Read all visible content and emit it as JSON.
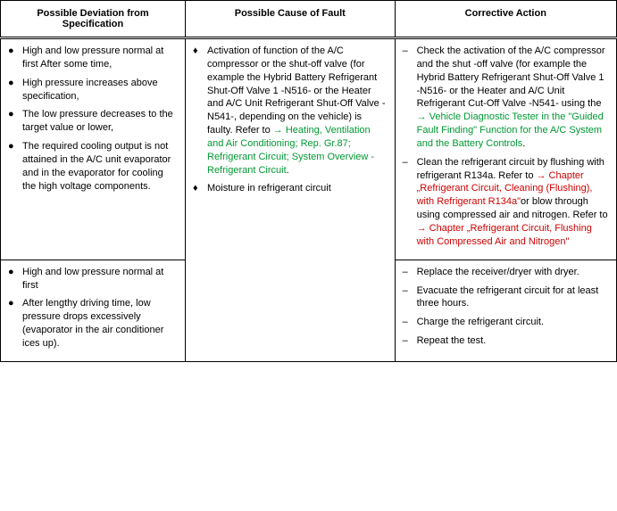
{
  "columns": {
    "w1": "30%",
    "w2": "34%",
    "w3": "36%"
  },
  "headers": {
    "c1": "Possible Deviation from Specification",
    "c2": "Possible Cause of Fault",
    "c3": "Corrective Action"
  },
  "bullets": {
    "dot": "♦",
    "disc": "●",
    "dash": "–"
  },
  "row1": {
    "dev": [
      "High and low pressure normal at first After some time,",
      "High pressure increases above specification,",
      "The low pressure decreases to the target value or lower,",
      "The required cooling output is not attained in the A/C unit evaporator and in the evaporator for cooling the high voltage components."
    ],
    "cause": {
      "item1_before": "Activation of function of the A/C compressor or the shut-off valve (for example the Hybrid Battery Refrigerant Shut-Off Valve 1 -N516- or the Heater and A/C Unit Refrigerant Shut-Off Valve -N541-, depending on the vehicle) is faulty. Refer to ",
      "item1_link": "→ Heating, Ventilation and Air Conditioning; Rep. Gr.87; Refrigerant Circuit; System Overview - Refrigerant Circuit",
      "item1_after": ".",
      "item2": "Moisture in refrigerant circuit"
    },
    "action": {
      "a1_before": "Check the activation of the A/C compressor and the shut -off valve (for example the Hybrid Battery Refrigerant Shut-Off Valve 1 -N516- or the Heater and A/C Unit Refrigerant Cut-Off Valve -N541- using the ",
      "a1_link": "→ Vehicle Diagnostic Tester in the \"Guided Fault Finding\" Function for the A/C System and the Battery Controls",
      "a1_after": ".",
      "a2_before": "Clean the refrigerant circuit by flushing with refrigerant R134a. Refer to ",
      "a2_link1": "→ Chapter „Refrigerant Circuit, Cleaning (Flushing), with Refrigerant R134a\"",
      "a2_mid": "or blow through using compressed air and nitrogen. Refer to ",
      "a2_link2": "→ Chapter „Refrigerant Circuit, Flushing with Compressed Air and Nitrogen\""
    }
  },
  "row2": {
    "dev": [
      "High and low pressure normal at first",
      "After lengthy driving time, low pressure drops excessively (evaporator in the air conditioner ices up)."
    ],
    "action": [
      "Replace the receiver/dryer with dryer.",
      "Evacuate the refrigerant circuit for at least three hours.",
      "Charge the refrigerant circuit.",
      "Repeat the test."
    ]
  }
}
